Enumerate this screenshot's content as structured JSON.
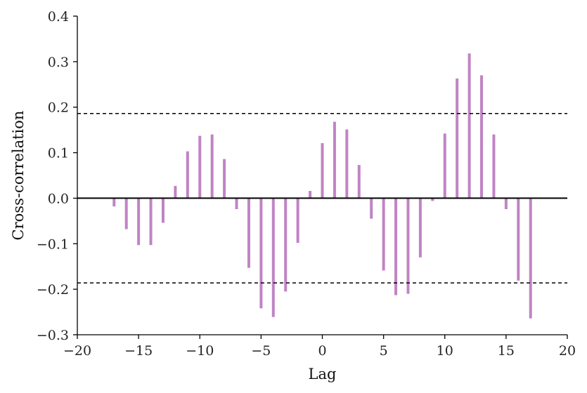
{
  "chart_data": {
    "type": "bar",
    "title": "",
    "xlabel": "Lag",
    "ylabel": "Cross-correlation",
    "xlim": [
      -20,
      20
    ],
    "ylim": [
      -0.3,
      0.4
    ],
    "xticks": [
      -20,
      -15,
      -10,
      -5,
      0,
      5,
      10,
      15,
      20
    ],
    "xtick_labels": [
      "−20",
      "−15",
      "−10",
      "−5",
      "0",
      "5",
      "10",
      "15",
      "20"
    ],
    "yticks": [
      -0.3,
      -0.2,
      -0.1,
      0.0,
      0.1,
      0.2,
      0.3,
      0.4
    ],
    "ytick_labels": [
      "−0.3",
      "−0.2",
      "−0.1",
      "0.0",
      "0.1",
      "0.2",
      "0.3",
      "0.4"
    ],
    "grid": false,
    "bar_color": "#c084c4",
    "zero_line": 0,
    "confidence_bounds": [
      0.186,
      -0.186
    ],
    "lags": [
      -17,
      -16,
      -15,
      -14,
      -13,
      -12,
      -11,
      -10,
      -9,
      -8,
      -7,
      -6,
      -5,
      -4,
      -3,
      -2,
      -1,
      0,
      1,
      2,
      3,
      4,
      5,
      6,
      7,
      8,
      9,
      10,
      11,
      12,
      13,
      14,
      15,
      16,
      17
    ],
    "values": [
      -0.018,
      -0.068,
      -0.103,
      -0.103,
      -0.054,
      0.027,
      0.103,
      0.137,
      0.14,
      0.086,
      -0.024,
      -0.153,
      -0.242,
      -0.261,
      -0.205,
      -0.098,
      0.016,
      0.121,
      0.168,
      0.151,
      0.073,
      -0.045,
      -0.159,
      -0.213,
      -0.21,
      -0.13,
      -0.006,
      0.142,
      0.263,
      0.318,
      0.27,
      0.14,
      -0.024,
      -0.181,
      -0.264
    ]
  }
}
